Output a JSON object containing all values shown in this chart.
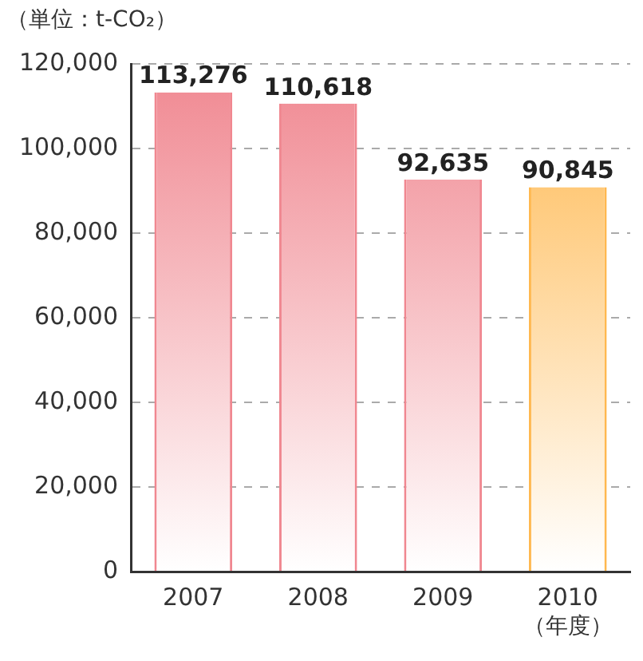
{
  "chart_data": {
    "type": "bar",
    "ylabel": "（単位：t-CO₂）",
    "xlabel": "（年度）",
    "categories": [
      "2007",
      "2008",
      "2009",
      "2010"
    ],
    "values": [
      113276,
      110618,
      92635,
      90845
    ],
    "value_labels": [
      "113,276",
      "110,618",
      "92,635",
      "90,845"
    ],
    "colors": [
      "#f08790",
      "#f08790",
      "#f08790",
      "#ffb84f"
    ],
    "ylim": [
      0,
      120000
    ],
    "yticks": [
      0,
      {
        "value": 20000,
        "label": "20,000"
      },
      {
        "value": 40000,
        "label": "40,000"
      },
      {
        "value": 60000,
        "label": "60,000"
      },
      {
        "value": 80000,
        "label": "80,000"
      },
      {
        "value": 100000,
        "label": "100,000"
      },
      {
        "value": 120000,
        "label": "120,000"
      }
    ],
    "grid": "y",
    "legend": false
  }
}
